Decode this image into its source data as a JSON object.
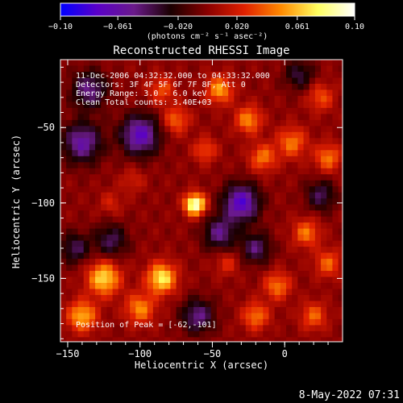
{
  "colorbar": {
    "ticks": [
      {
        "value": -0.1,
        "label": "−0.10"
      },
      {
        "value": -0.061,
        "label": "−0.061"
      },
      {
        "value": -0.02,
        "label": "−0.020"
      },
      {
        "value": 0.02,
        "label": "0.020"
      },
      {
        "value": 0.061,
        "label": "0.061"
      },
      {
        "value": 0.1,
        "label": "0.10"
      }
    ],
    "unit_label": "(photons cm⁻² s⁻¹ asec⁻²)",
    "range": [
      -0.1,
      0.1
    ],
    "colors": [
      "#0000ff",
      "#5a00c8",
      "#6a1a8a",
      "#1a0000",
      "#8a0000",
      "#e02000",
      "#ff8a00",
      "#ffff60",
      "#ffffff"
    ]
  },
  "chart_data": {
    "type": "heatmap",
    "title": "Reconstructed RHESSI Image",
    "xlabel": "Heliocentric X (arcsec)",
    "ylabel": "Heliocentric Y (arcsec)",
    "xlim": [
      -155,
      40
    ],
    "ylim": [
      -192,
      -5
    ],
    "x_ticks": [
      {
        "value": -150,
        "label": "−150"
      },
      {
        "value": -100,
        "label": "−100"
      },
      {
        "value": -50,
        "label": "−50"
      },
      {
        "value": 0,
        "label": "0"
      }
    ],
    "y_ticks": [
      {
        "value": -50,
        "label": "−50"
      },
      {
        "value": -100,
        "label": "−100"
      },
      {
        "value": -150,
        "label": "−150"
      }
    ],
    "annotations": [
      "11-Dec-2006 04:32:32.000 to 04:33:32.000",
      "Detectors: 3F 4F 5F 6F 7F 8F, Att 0",
      "Energy Range: 3.0 - 6.0 keV",
      "Clean     Total counts: 3.40E+03"
    ],
    "peak_label": "Position of Peak = [-62,-101]",
    "peak": [
      -62,
      -101
    ],
    "sources": [
      {
        "x": -62,
        "y": -101,
        "value": 0.1,
        "size": 7
      },
      {
        "x": -85,
        "y": -150,
        "value": 0.075,
        "size": 10
      },
      {
        "x": -125,
        "y": -150,
        "value": 0.07,
        "size": 11
      },
      {
        "x": -140,
        "y": -175,
        "value": 0.06,
        "size": 10
      },
      {
        "x": -100,
        "y": -170,
        "value": 0.05,
        "size": 10
      },
      {
        "x": -45,
        "y": -25,
        "value": 0.055,
        "size": 9
      },
      {
        "x": -25,
        "y": -45,
        "value": 0.05,
        "size": 9
      },
      {
        "x": -15,
        "y": -70,
        "value": 0.045,
        "size": 9
      },
      {
        "x": 5,
        "y": -60,
        "value": 0.045,
        "size": 10
      },
      {
        "x": 30,
        "y": -70,
        "value": 0.045,
        "size": 9
      },
      {
        "x": -75,
        "y": -45,
        "value": 0.04,
        "size": 9
      },
      {
        "x": -55,
        "y": -65,
        "value": 0.035,
        "size": 8
      },
      {
        "x": 15,
        "y": -120,
        "value": 0.045,
        "size": 9
      },
      {
        "x": 30,
        "y": -140,
        "value": 0.04,
        "size": 9
      },
      {
        "x": -5,
        "y": -155,
        "value": 0.045,
        "size": 9
      },
      {
        "x": -20,
        "y": -175,
        "value": 0.045,
        "size": 9
      },
      {
        "x": 20,
        "y": -175,
        "value": 0.04,
        "size": 9
      },
      {
        "x": -120,
        "y": -100,
        "value": 0.02,
        "size": 8
      },
      {
        "x": -105,
        "y": -85,
        "value": 0.02,
        "size": 8
      },
      {
        "x": -40,
        "y": -140,
        "value": 0.025,
        "size": 8
      },
      {
        "x": -85,
        "y": -25,
        "value": 0.035,
        "size": 9
      },
      {
        "x": 25,
        "y": -30,
        "value": 0.035,
        "size": 9
      },
      {
        "x": -100,
        "y": -55,
        "value": -0.07,
        "size": 13
      },
      {
        "x": -140,
        "y": -60,
        "value": -0.06,
        "size": 13
      },
      {
        "x": -135,
        "y": -25,
        "value": -0.05,
        "size": 12
      },
      {
        "x": -30,
        "y": -100,
        "value": -0.075,
        "size": 12
      },
      {
        "x": -45,
        "y": -120,
        "value": -0.05,
        "size": 11
      },
      {
        "x": -20,
        "y": -130,
        "value": -0.045,
        "size": 10
      },
      {
        "x": -60,
        "y": -175,
        "value": -0.05,
        "size": 11
      },
      {
        "x": -120,
        "y": -125,
        "value": -0.04,
        "size": 11
      },
      {
        "x": 25,
        "y": -95,
        "value": -0.04,
        "size": 10
      },
      {
        "x": 10,
        "y": -15,
        "value": -0.035,
        "size": 10
      },
      {
        "x": -145,
        "y": -130,
        "value": -0.04,
        "size": 10
      }
    ]
  },
  "footer": {
    "date_stamp": "8-May-2022 07:31"
  }
}
